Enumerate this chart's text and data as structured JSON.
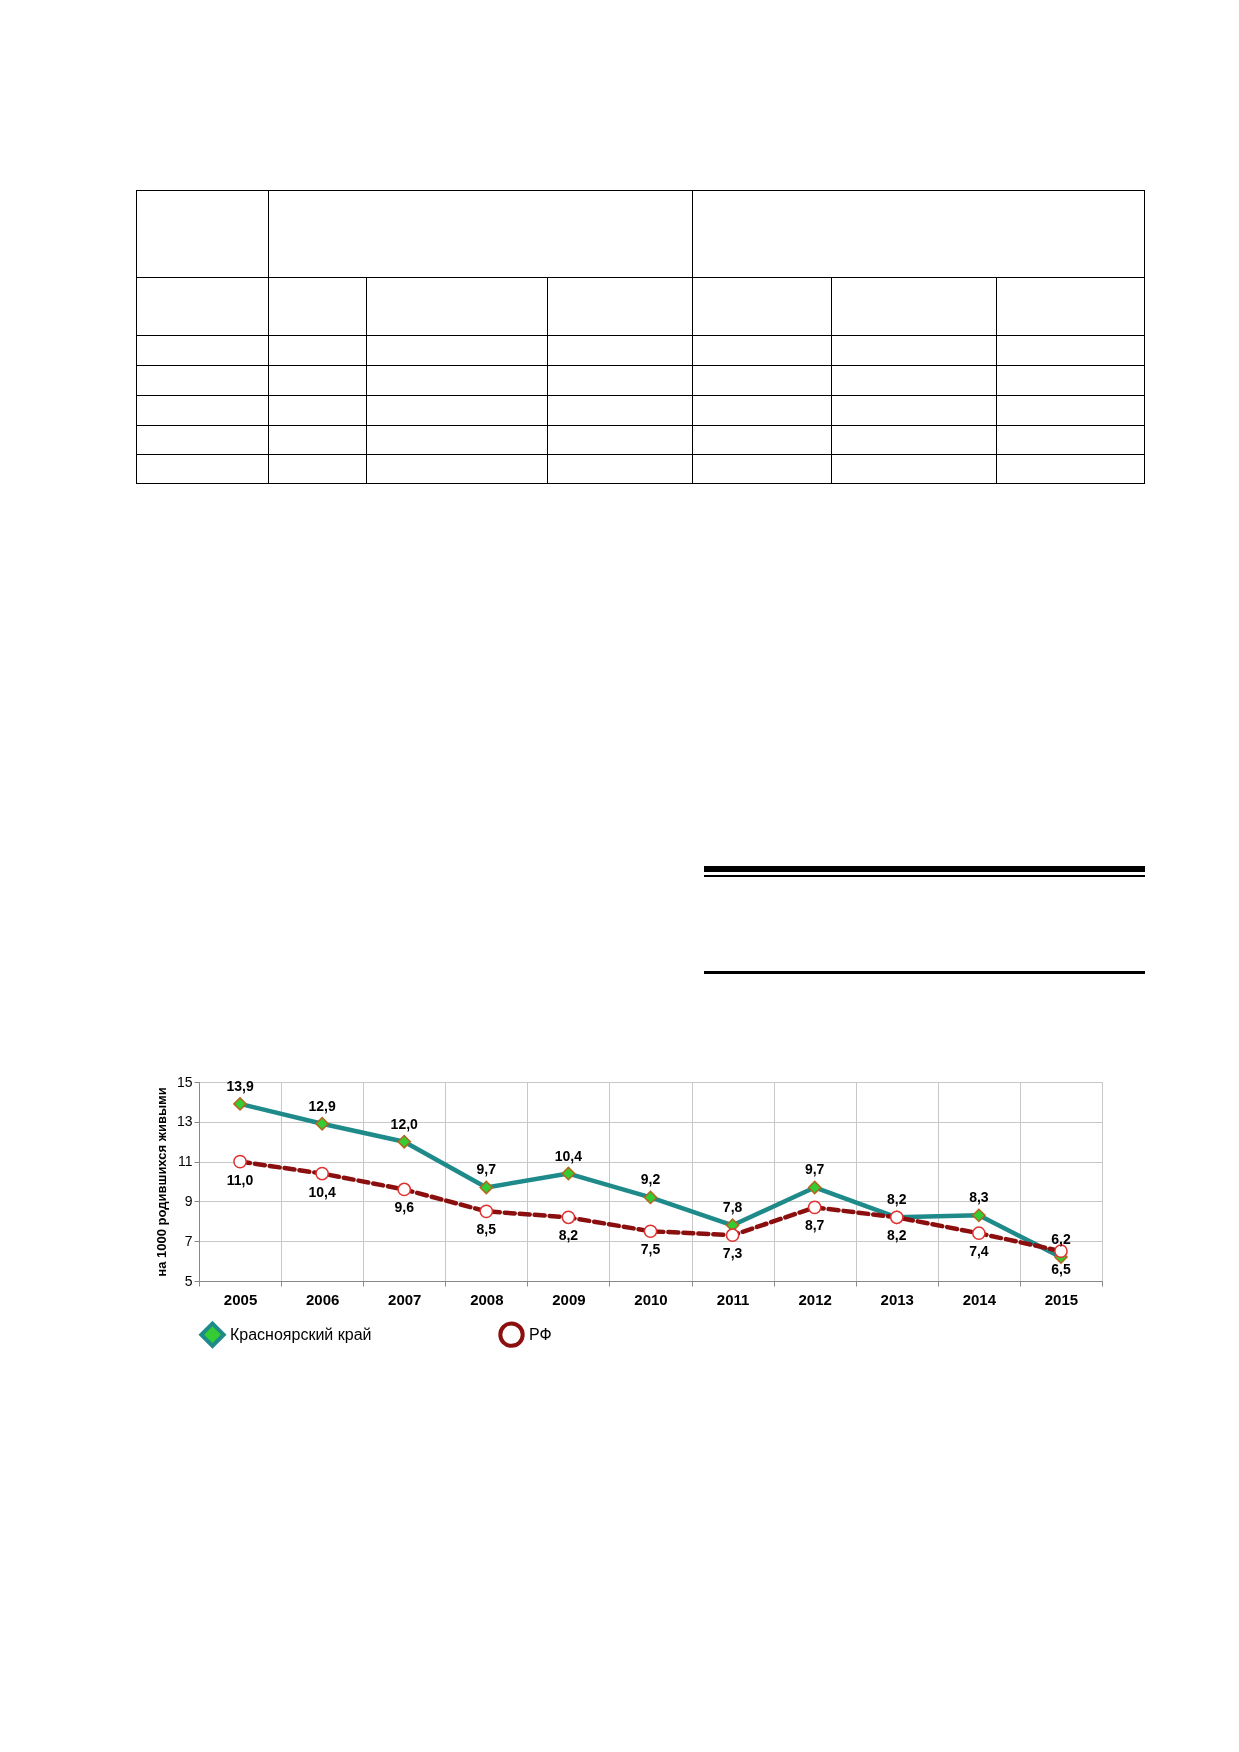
{
  "chart_data": {
    "type": "line",
    "ylabel": "на 1000 родившихся живыми",
    "categories": [
      "2005",
      "2006",
      "2007",
      "2008",
      "2009",
      "2010",
      "2011",
      "2012",
      "2013",
      "2014",
      "2015"
    ],
    "series": [
      {
        "name": "Красноярский край",
        "color": "#1f8a8a",
        "marker": "diamond",
        "line_style": "solid",
        "values": [
          13.9,
          12.9,
          12.0,
          9.7,
          10.4,
          9.2,
          7.8,
          9.7,
          8.2,
          8.3,
          6.2
        ],
        "value_labels": [
          "13,9",
          "12,9",
          "12,0",
          "9,7",
          "10,4",
          "9,2",
          "7,8",
          "9,7",
          "8,2",
          "8,3",
          "6,2"
        ]
      },
      {
        "name": "РФ",
        "color": "#8b0f0f",
        "marker": "circle",
        "line_style": "dashed",
        "values": [
          11.0,
          10.4,
          9.6,
          8.5,
          8.2,
          7.5,
          7.3,
          8.7,
          8.2,
          7.4,
          6.5
        ],
        "value_labels": [
          "11,0",
          "10,4",
          "9,6",
          "8,5",
          "8,2",
          "7,5",
          "7,3",
          "8,7",
          "8,2",
          "7,4",
          "6,5"
        ]
      }
    ],
    "ylim": [
      5,
      15
    ],
    "yticks": [
      5,
      7,
      9,
      11,
      13,
      15
    ],
    "grid": true,
    "legend": "bottom"
  }
}
